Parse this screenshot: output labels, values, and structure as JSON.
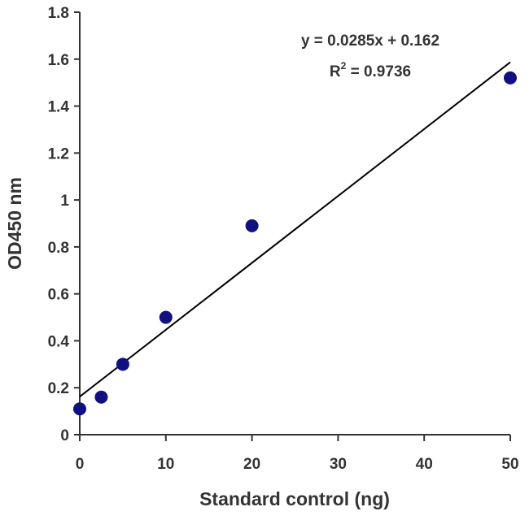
{
  "chart_data": {
    "type": "scatter",
    "xlabel": "Standard control (ng)",
    "ylabel": "OD450 nm",
    "xlim": [
      0,
      50
    ],
    "ylim": [
      0,
      1.8
    ],
    "x_ticks": [
      "0",
      "10",
      "20",
      "30",
      "40",
      "50"
    ],
    "y_ticks": [
      "0",
      "0.2",
      "0.4",
      "0.6",
      "0.8",
      "1",
      "1.2",
      "1.4",
      "1.6",
      "1.8"
    ],
    "grid": false,
    "series": [
      {
        "points": [
          {
            "x": 0,
            "y": 0.11
          },
          {
            "x": 2.5,
            "y": 0.16
          },
          {
            "x": 5,
            "y": 0.3
          },
          {
            "x": 10,
            "y": 0.5
          },
          {
            "x": 20,
            "y": 0.89
          },
          {
            "x": 50,
            "y": 1.52
          }
        ]
      }
    ],
    "trendline": {
      "slope": 0.0285,
      "intercept": 0.162
    },
    "annotations": {
      "equation": "y = 0.0285x + 0.162",
      "r2_prefix": "R",
      "r2_sup": "2",
      "r2_value": " = 0.9736"
    },
    "colors": {
      "points": "#101080",
      "line": "#000000",
      "axis": "#333333"
    }
  }
}
